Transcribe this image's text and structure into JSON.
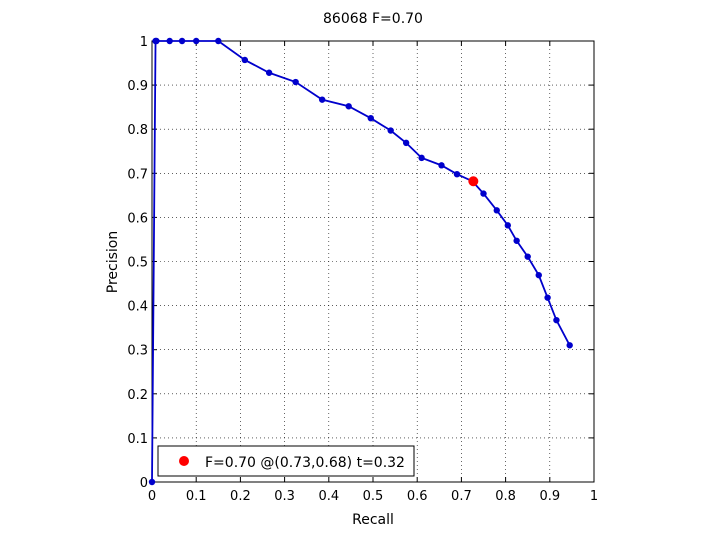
{
  "chart_data": {
    "type": "line",
    "title": "86068 F=0.70",
    "xlabel": "Recall",
    "ylabel": "Precision",
    "xlim": [
      0,
      1
    ],
    "ylim": [
      0,
      1
    ],
    "xticks": [
      0,
      0.1,
      0.2,
      0.3,
      0.4,
      0.5,
      0.6,
      0.7,
      0.8,
      0.9,
      1
    ],
    "yticks": [
      0,
      0.1,
      0.2,
      0.3,
      0.4,
      0.5,
      0.6,
      0.7,
      0.8,
      0.9,
      1
    ],
    "grid": true,
    "legend_position": "bottom-left",
    "series": [
      {
        "color": "#0000cc",
        "x": [
          0,
          0.008,
          0.01,
          0.04,
          0.068,
          0.1,
          0.15,
          0.21,
          0.265,
          0.325,
          0.385,
          0.445,
          0.495,
          0.54,
          0.575,
          0.61,
          0.655,
          0.69,
          0.725,
          0.75,
          0.78,
          0.805,
          0.825,
          0.85,
          0.875,
          0.895,
          0.915,
          0.945
        ],
        "y": [
          0,
          1,
          1,
          1,
          1,
          1,
          1,
          0.957,
          0.928,
          0.907,
          0.867,
          0.852,
          0.825,
          0.797,
          0.769,
          0.735,
          0.718,
          0.698,
          0.682,
          0.654,
          0.616,
          0.582,
          0.547,
          0.511,
          0.469,
          0.418,
          0.367,
          0.31
        ]
      }
    ],
    "highlight": {
      "label": "F=0.70 @(0.73,0.68) t=0.32",
      "x": 0.727,
      "y": 0.682,
      "color": "#ff0000"
    }
  }
}
